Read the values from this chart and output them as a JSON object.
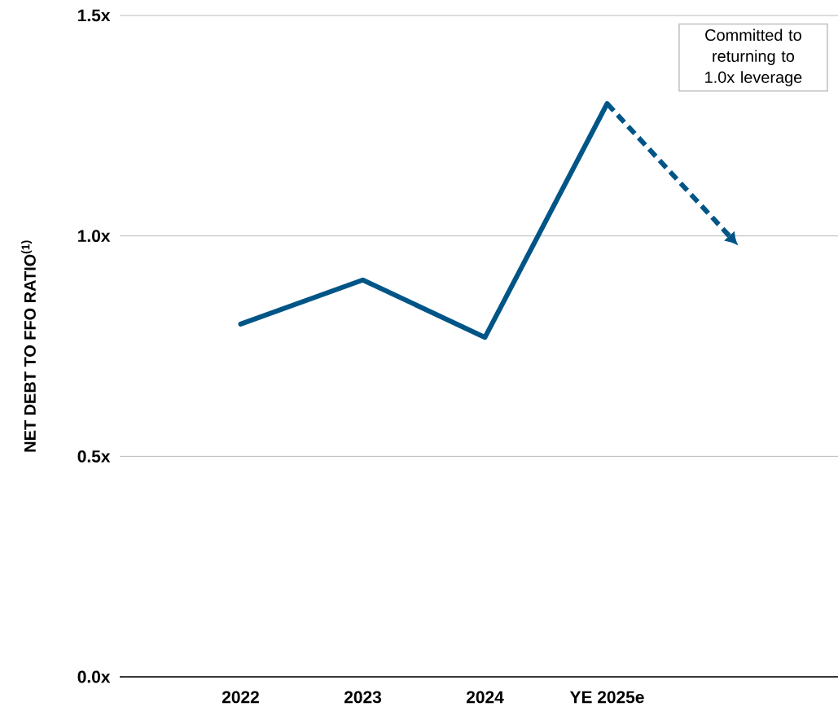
{
  "chart_data": {
    "type": "line",
    "ylabel": "NET DEBT TO FFO RATIO$^{(1)}$",
    "categories": [
      "2022",
      "2023",
      "2024",
      "YE 2025e",
      null
    ],
    "series": [
      {
        "color": "#005587",
        "values": [
          0.8,
          0.9,
          0.77,
          1.3,
          null
        ],
        "line_style": "solid"
      },
      {
        "color": "#005587",
        "values": [
          null,
          null,
          null,
          1.3,
          1.0
        ],
        "line_style": "dashed"
      }
    ],
    "ylim": [
      0,
      1.5
    ],
    "yticks": [
      {
        "value": 0,
        "label": "0.0x"
      },
      {
        "value": 0.5,
        "label": "0.5x"
      },
      {
        "value": 1.0,
        "label": "1.0x"
      },
      {
        "value": 1.5,
        "label": "1.5x"
      }
    ],
    "grid": "y",
    "annotations": [
      "Committed to returning to 1.0x leverage"
    ]
  }
}
